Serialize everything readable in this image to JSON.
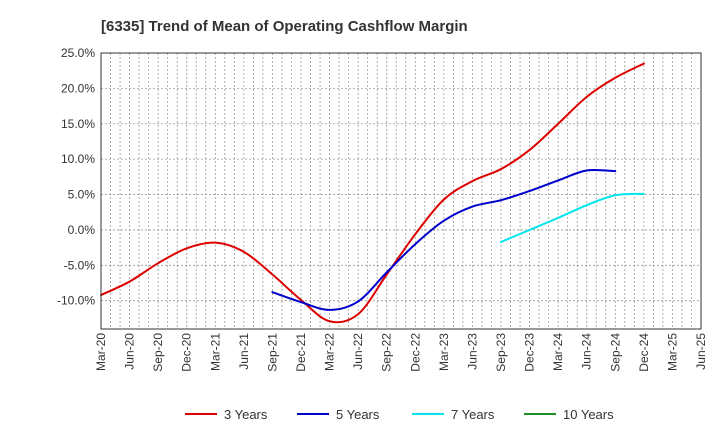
{
  "chart_data": {
    "type": "line",
    "title": "[6335]  Trend of Mean of Operating Cashflow Margin",
    "xlabel": "",
    "ylabel": "",
    "ylim": [
      -14.0,
      25.0
    ],
    "y_ticks": [
      25.0,
      20.0,
      15.0,
      10.0,
      5.0,
      0.0,
      -5.0,
      -10.0
    ],
    "y_tick_labels": [
      "25.0%",
      "20.0%",
      "15.0%",
      "10.0%",
      "5.0%",
      "0.0%",
      "-5.0%",
      "-10.0%"
    ],
    "x_tick_labels": [
      "Mar-20",
      "Jun-20",
      "Sep-20",
      "Dec-20",
      "Mar-21",
      "Jun-21",
      "Sep-21",
      "Dec-21",
      "Mar-22",
      "Jun-22",
      "Sep-22",
      "Dec-22",
      "Mar-23",
      "Jun-23",
      "Sep-23",
      "Dec-23",
      "Mar-24",
      "Jun-24",
      "Sep-24",
      "Dec-24",
      "Mar-25",
      "Jun-25"
    ],
    "grid": true,
    "legend_position": "bottom",
    "series": [
      {
        "name": "3 Years",
        "color": "#dd0000",
        "start_index": 0,
        "values": [
          -9.2,
          -7.3,
          -4.7,
          -2.6,
          -1.8,
          -3.1,
          -6.3,
          -9.9,
          -12.9,
          -11.9,
          -6.3,
          -0.6,
          4.3,
          6.9,
          8.6,
          11.3,
          15.0,
          18.8,
          21.5,
          23.5
        ]
      },
      {
        "name": "5 Years",
        "color": "#0000cc",
        "start_index": 6,
        "values": [
          -8.8,
          -10.2,
          -11.3,
          -10.1,
          -6.0,
          -2.0,
          1.3,
          3.3,
          4.2,
          5.5,
          7.0,
          8.4,
          8.3
        ]
      },
      {
        "name": "7 Years",
        "color": "#00e5ee",
        "start_index": 14,
        "values": [
          -1.7,
          0.0,
          1.7,
          3.5,
          4.9,
          5.1
        ]
      },
      {
        "name": "10 Years",
        "color": "#228b22",
        "start_index": 14,
        "values": []
      }
    ]
  }
}
